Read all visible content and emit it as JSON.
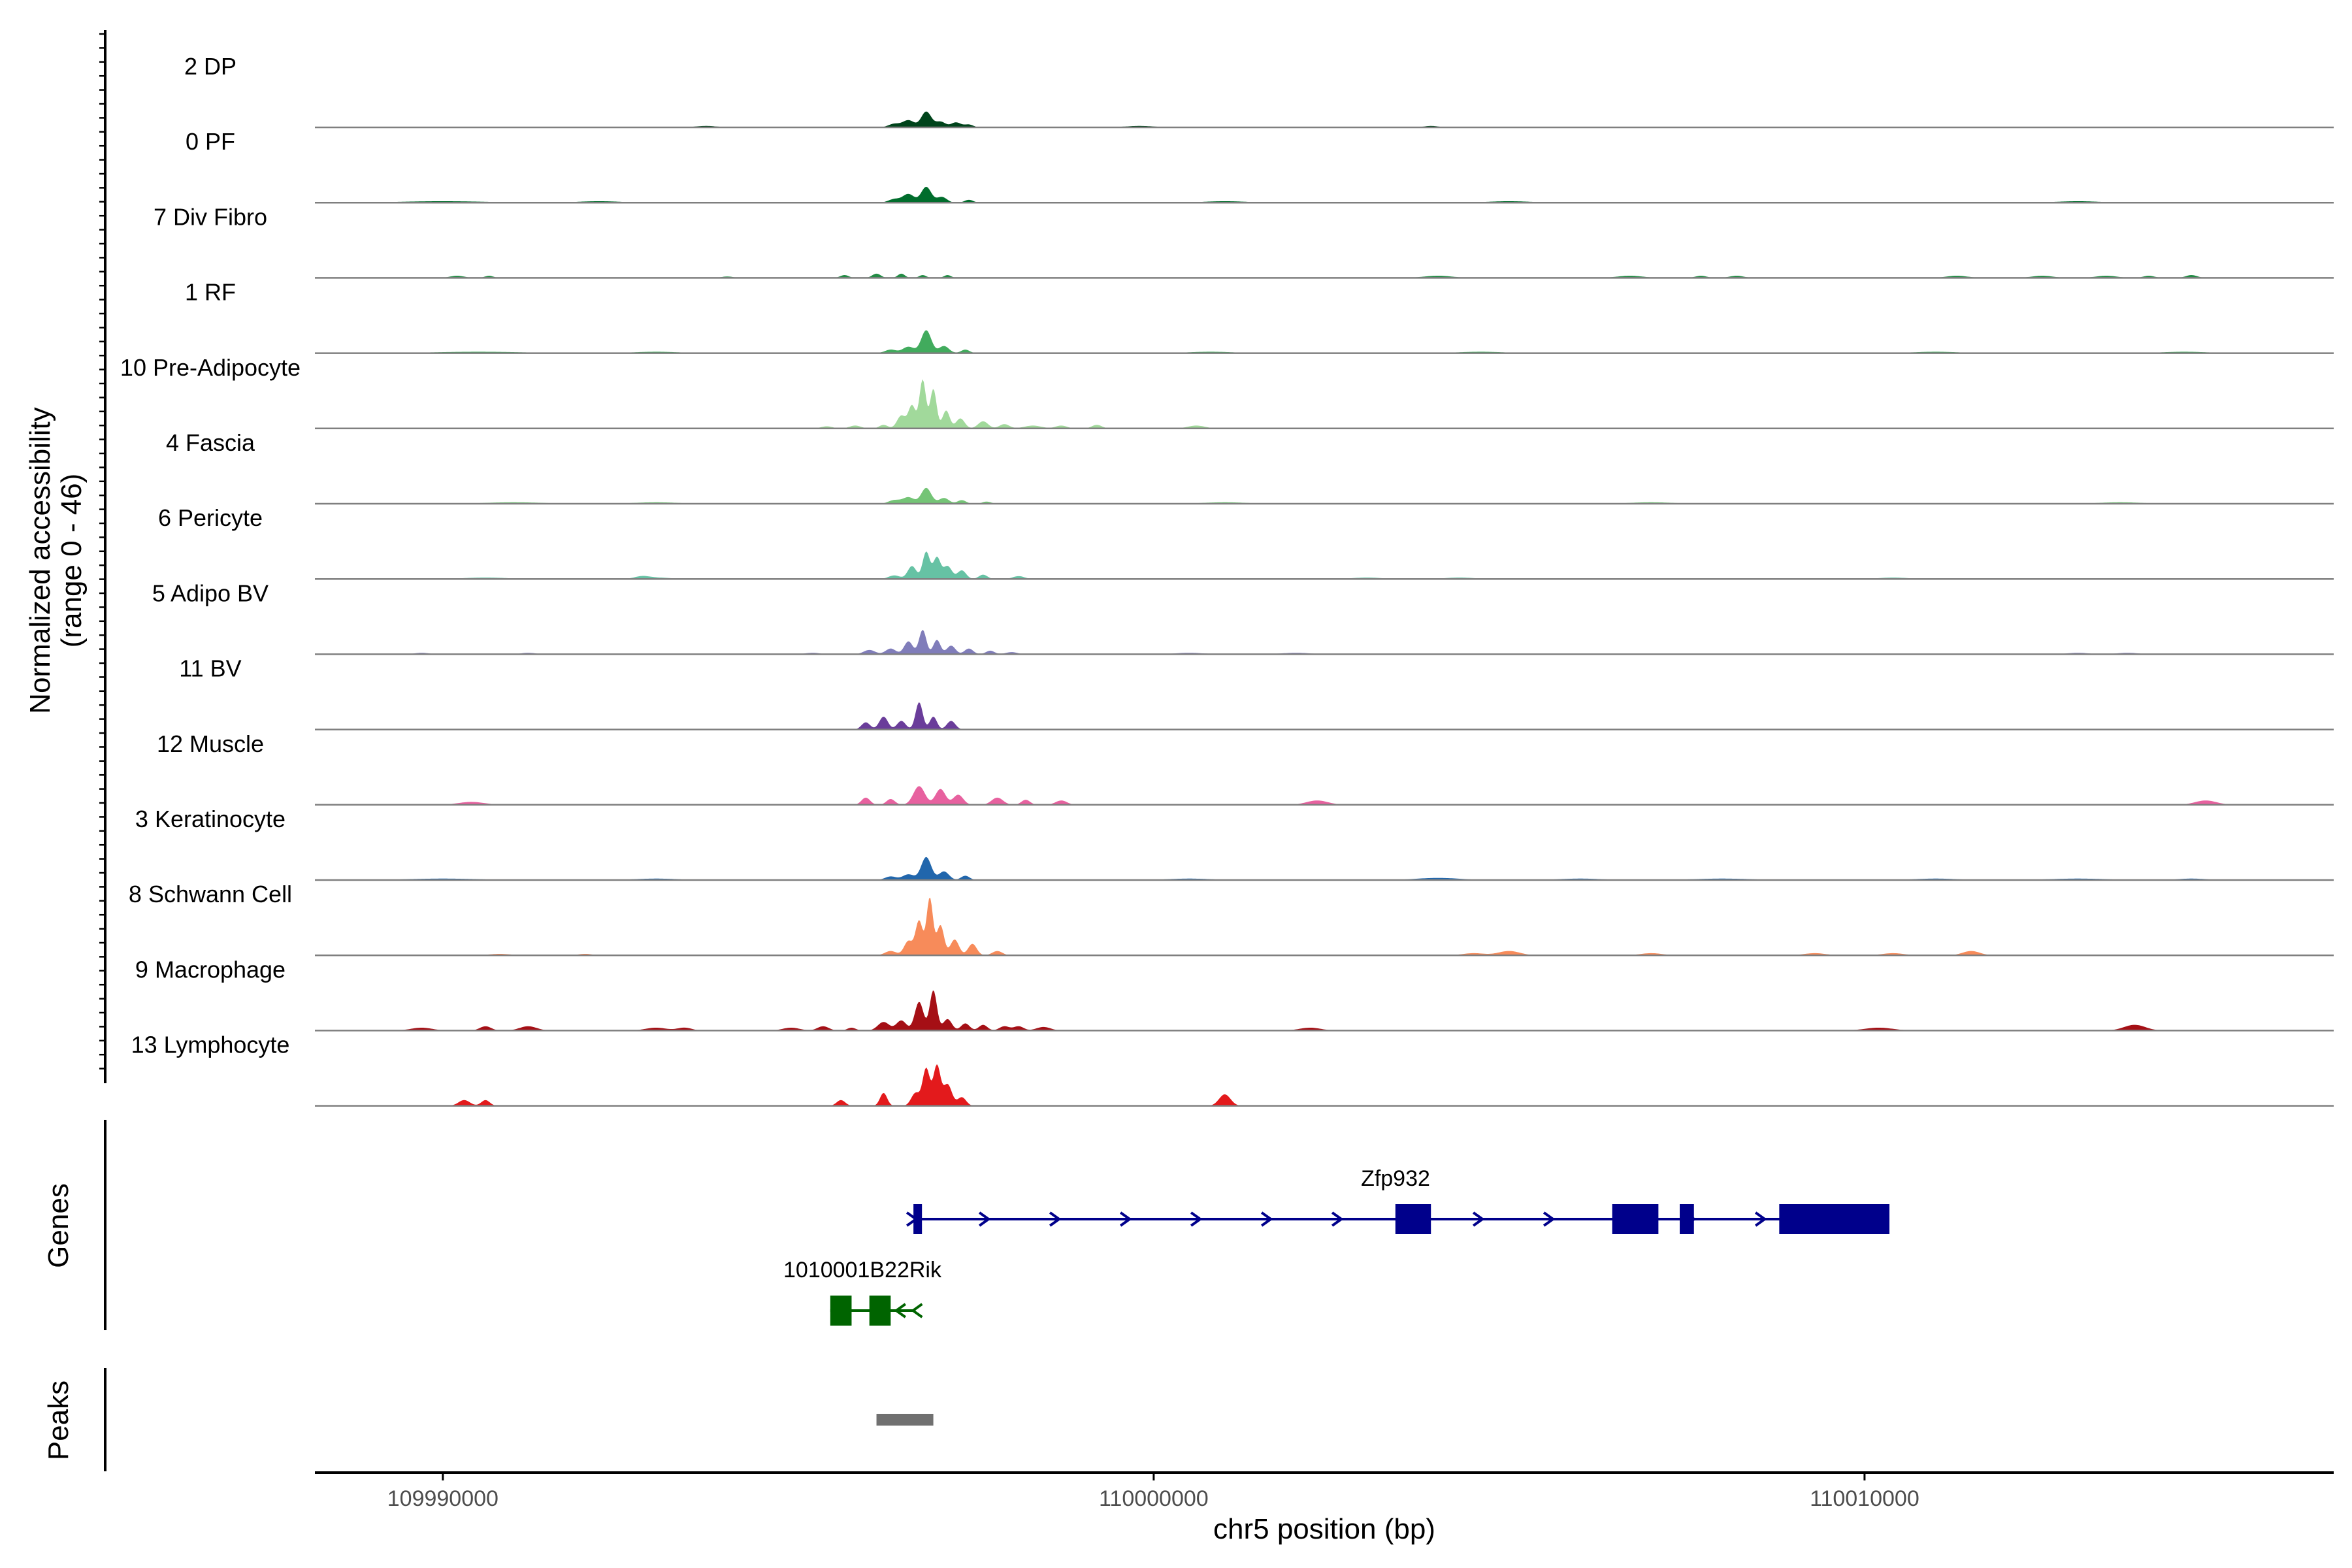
{
  "chart_data": {
    "type": "area",
    "title": "",
    "ylabel": [
      "Normalized accessibility",
      "(range 0 - 46)"
    ],
    "xlabel": "chr5 position (bp)",
    "xlim": [
      109988200,
      110016600
    ],
    "ylim": [
      0,
      46
    ],
    "x_ticks": [
      109990000,
      110000000,
      110010000
    ],
    "x_tick_labels": [
      "109990000",
      "110000000",
      "110010000"
    ],
    "grid": false,
    "tracks": [
      {
        "name": "2 DP",
        "color": "#00441b",
        "peaks": [
          [
            109996350,
            0.05,
            80
          ],
          [
            109996550,
            0.1,
            80
          ],
          [
            109996800,
            0.22,
            70
          ],
          [
            109997000,
            0.08,
            70
          ],
          [
            109997220,
            0.07,
            70
          ],
          [
            109997400,
            0.04,
            60
          ],
          [
            109993700,
            0.02,
            150
          ],
          [
            109999800,
            0.02,
            200
          ],
          [
            110003900,
            0.02,
            100
          ]
        ]
      },
      {
        "name": "0 PF",
        "color": "#006d2c",
        "peaks": [
          [
            109996350,
            0.05,
            80
          ],
          [
            109996550,
            0.12,
            80
          ],
          [
            109996800,
            0.22,
            70
          ],
          [
            109997020,
            0.08,
            70
          ],
          [
            109997400,
            0.04,
            60
          ],
          [
            109990000,
            0.02,
            600
          ],
          [
            109992200,
            0.02,
            300
          ],
          [
            110001000,
            0.02,
            300
          ],
          [
            110005000,
            0.02,
            300
          ],
          [
            110013000,
            0.02,
            300
          ]
        ]
      },
      {
        "name": "7 Div Fibro",
        "color": "#238b45",
        "peaks": [
          [
            109990200,
            0.03,
            100
          ],
          [
            109990650,
            0.03,
            60
          ],
          [
            109994000,
            0.02,
            80
          ],
          [
            109995650,
            0.04,
            60
          ],
          [
            109996100,
            0.06,
            60
          ],
          [
            109996450,
            0.06,
            50
          ],
          [
            109996750,
            0.04,
            50
          ],
          [
            109997100,
            0.04,
            50
          ],
          [
            110004000,
            0.03,
            200
          ],
          [
            110006700,
            0.03,
            180
          ],
          [
            110007700,
            0.03,
            80
          ],
          [
            110008200,
            0.03,
            100
          ],
          [
            110011300,
            0.03,
            150
          ],
          [
            110012500,
            0.03,
            150
          ],
          [
            110013400,
            0.03,
            150
          ],
          [
            110014000,
            0.03,
            80
          ],
          [
            110014600,
            0.04,
            80
          ]
        ]
      },
      {
        "name": "1 RF",
        "color": "#41ab5d",
        "peaks": [
          [
            109996300,
            0.05,
            80
          ],
          [
            109996550,
            0.09,
            80
          ],
          [
            109996800,
            0.32,
            70
          ],
          [
            109997050,
            0.1,
            70
          ],
          [
            109997350,
            0.05,
            60
          ],
          [
            109990500,
            0.02,
            600
          ],
          [
            109993000,
            0.02,
            300
          ],
          [
            110000800,
            0.02,
            300
          ],
          [
            110004600,
            0.02,
            300
          ],
          [
            110011000,
            0.02,
            300
          ],
          [
            110014500,
            0.02,
            300
          ]
        ]
      },
      {
        "name": "10 Pre-Adipocyte",
        "color": "#a1d99b",
        "peaks": [
          [
            109995400,
            0.03,
            80
          ],
          [
            109995800,
            0.04,
            80
          ],
          [
            109996200,
            0.05,
            60
          ],
          [
            109996450,
            0.18,
            60
          ],
          [
            109996600,
            0.32,
            50
          ],
          [
            109996750,
            0.68,
            45
          ],
          [
            109996900,
            0.55,
            45
          ],
          [
            109997080,
            0.25,
            50
          ],
          [
            109997280,
            0.14,
            60
          ],
          [
            109997600,
            0.1,
            70
          ],
          [
            109997900,
            0.06,
            70
          ],
          [
            109998300,
            0.04,
            120
          ],
          [
            109998700,
            0.04,
            80
          ],
          [
            109999200,
            0.05,
            70
          ],
          [
            110000600,
            0.04,
            120
          ]
        ]
      },
      {
        "name": "4 Fascia",
        "color": "#74c476",
        "peaks": [
          [
            109996350,
            0.05,
            80
          ],
          [
            109996550,
            0.09,
            80
          ],
          [
            109996800,
            0.22,
            70
          ],
          [
            109997050,
            0.08,
            70
          ],
          [
            109997300,
            0.05,
            60
          ],
          [
            109997650,
            0.03,
            60
          ],
          [
            109991000,
            0.02,
            400
          ],
          [
            109993000,
            0.02,
            300
          ],
          [
            110001000,
            0.02,
            300
          ],
          [
            110007000,
            0.02,
            300
          ],
          [
            110013600,
            0.02,
            300
          ]
        ]
      },
      {
        "name": "6 Pericyte",
        "color": "#66c2a4",
        "peaks": [
          [
            109996350,
            0.05,
            80
          ],
          [
            109996600,
            0.18,
            60
          ],
          [
            109996800,
            0.38,
            50
          ],
          [
            109996950,
            0.3,
            50
          ],
          [
            109997100,
            0.18,
            60
          ],
          [
            109997300,
            0.12,
            60
          ],
          [
            109997600,
            0.06,
            60
          ],
          [
            109998100,
            0.04,
            80
          ],
          [
            109990600,
            0.02,
            300
          ],
          [
            109992800,
            0.03,
            100
          ],
          [
            109993000,
            0.02,
            200
          ],
          [
            110003000,
            0.02,
            200
          ],
          [
            110004300,
            0.02,
            200
          ],
          [
            110010400,
            0.02,
            200
          ]
        ]
      },
      {
        "name": "5 Adipo BV",
        "color": "#807dba",
        "peaks": [
          [
            109996000,
            0.06,
            80
          ],
          [
            109996300,
            0.08,
            70
          ],
          [
            109996550,
            0.18,
            60
          ],
          [
            109996750,
            0.34,
            50
          ],
          [
            109996950,
            0.2,
            50
          ],
          [
            109997150,
            0.12,
            60
          ],
          [
            109997400,
            0.08,
            60
          ],
          [
            109997700,
            0.05,
            60
          ],
          [
            109998000,
            0.03,
            80
          ],
          [
            109989700,
            0.02,
            100
          ],
          [
            109991200,
            0.02,
            100
          ],
          [
            109995200,
            0.02,
            100
          ],
          [
            110000500,
            0.02,
            200
          ],
          [
            110002000,
            0.02,
            200
          ],
          [
            110013000,
            0.02,
            150
          ],
          [
            110013700,
            0.02,
            150
          ]
        ]
      },
      {
        "name": "11 BV",
        "color": "#6a3d9a",
        "peaks": [
          [
            109995950,
            0.1,
            60
          ],
          [
            109996200,
            0.18,
            60
          ],
          [
            109996450,
            0.12,
            60
          ],
          [
            109996700,
            0.38,
            50
          ],
          [
            109996900,
            0.18,
            50
          ],
          [
            109997150,
            0.12,
            60
          ]
        ]
      },
      {
        "name": "12 Muscle",
        "color": "#e7619f",
        "peaks": [
          [
            109990400,
            0.04,
            180
          ],
          [
            109995950,
            0.1,
            60
          ],
          [
            109996300,
            0.08,
            60
          ],
          [
            109996700,
            0.26,
            80
          ],
          [
            109997000,
            0.22,
            70
          ],
          [
            109997250,
            0.14,
            70
          ],
          [
            109997800,
            0.1,
            80
          ],
          [
            109998200,
            0.07,
            60
          ],
          [
            109998700,
            0.06,
            80
          ],
          [
            110002300,
            0.06,
            150
          ],
          [
            110014800,
            0.06,
            150
          ]
        ]
      },
      {
        "name": "3 Keratinocyte",
        "color": "#2166ac",
        "peaks": [
          [
            109996300,
            0.05,
            80
          ],
          [
            109996550,
            0.08,
            80
          ],
          [
            109996800,
            0.32,
            70
          ],
          [
            109997050,
            0.12,
            70
          ],
          [
            109997350,
            0.06,
            60
          ],
          [
            109990000,
            0.02,
            500
          ],
          [
            109993000,
            0.02,
            300
          ],
          [
            110000500,
            0.02,
            300
          ],
          [
            110004000,
            0.03,
            300
          ],
          [
            110006000,
            0.02,
            300
          ],
          [
            110008000,
            0.02,
            400
          ],
          [
            110011000,
            0.02,
            300
          ],
          [
            110013000,
            0.02,
            400
          ],
          [
            110014600,
            0.02,
            200
          ]
        ]
      },
      {
        "name": "8 Schwann Cell",
        "color": "#f78b5a",
        "peaks": [
          [
            109996300,
            0.06,
            80
          ],
          [
            109996550,
            0.2,
            60
          ],
          [
            109996700,
            0.48,
            50
          ],
          [
            109996850,
            0.8,
            45
          ],
          [
            109997000,
            0.42,
            50
          ],
          [
            109997200,
            0.22,
            60
          ],
          [
            109997450,
            0.16,
            60
          ],
          [
            109997800,
            0.06,
            70
          ],
          [
            109990800,
            0.02,
            150
          ],
          [
            109992000,
            0.02,
            100
          ],
          [
            110004500,
            0.03,
            150
          ],
          [
            110005000,
            0.06,
            150
          ],
          [
            110007000,
            0.03,
            150
          ],
          [
            110009300,
            0.03,
            150
          ],
          [
            110010400,
            0.03,
            150
          ],
          [
            110011500,
            0.06,
            120
          ]
        ]
      },
      {
        "name": "9 Macrophage",
        "color": "#a50f15",
        "peaks": [
          [
            109989700,
            0.04,
            150
          ],
          [
            109990600,
            0.06,
            80
          ],
          [
            109991200,
            0.06,
            120
          ],
          [
            109993000,
            0.04,
            150
          ],
          [
            109993400,
            0.04,
            100
          ],
          [
            109994900,
            0.04,
            120
          ],
          [
            109995350,
            0.06,
            80
          ],
          [
            109995750,
            0.04,
            60
          ],
          [
            109996200,
            0.12,
            80
          ],
          [
            109996450,
            0.14,
            70
          ],
          [
            109996700,
            0.4,
            60
          ],
          [
            109996900,
            0.56,
            50
          ],
          [
            109997100,
            0.16,
            60
          ],
          [
            109997350,
            0.1,
            60
          ],
          [
            109997600,
            0.08,
            60
          ],
          [
            109997900,
            0.06,
            70
          ],
          [
            109998100,
            0.06,
            70
          ],
          [
            109998450,
            0.05,
            100
          ],
          [
            110002200,
            0.04,
            150
          ],
          [
            110010200,
            0.04,
            200
          ],
          [
            110013800,
            0.08,
            150
          ]
        ]
      },
      {
        "name": "13 Lymphocyte",
        "color": "#e31a1c",
        "peaks": [
          [
            109990300,
            0.08,
            80
          ],
          [
            109990600,
            0.08,
            60
          ],
          [
            109995600,
            0.08,
            60
          ],
          [
            109996200,
            0.18,
            50
          ],
          [
            109996650,
            0.18,
            60
          ],
          [
            109996800,
            0.52,
            50
          ],
          [
            109996950,
            0.56,
            50
          ],
          [
            109997100,
            0.3,
            60
          ],
          [
            109997300,
            0.12,
            60
          ],
          [
            110001000,
            0.16,
            80
          ]
        ]
      }
    ],
    "genes": [
      {
        "name": "Zfp932",
        "color": "#00008b",
        "strand": "+",
        "start": 109996620,
        "end": 110010350,
        "exons": [
          [
            109996620,
            109996740
          ],
          [
            110003400,
            110003900
          ],
          [
            110006450,
            110007100
          ],
          [
            110007400,
            110007600
          ],
          [
            110008800,
            110010350
          ]
        ]
      },
      {
        "name": "1010001B22Rik",
        "color": "#006400",
        "strand": "-",
        "start": 109995450,
        "end": 109996650,
        "exons": [
          [
            109995450,
            109995750
          ],
          [
            109996000,
            109996300
          ]
        ]
      }
    ],
    "peaks_track": [
      {
        "start": 109996100,
        "end": 109996900,
        "color": "#707070"
      }
    ],
    "panel_labels": {
      "genes": "Genes",
      "peaks": "Peaks"
    }
  }
}
